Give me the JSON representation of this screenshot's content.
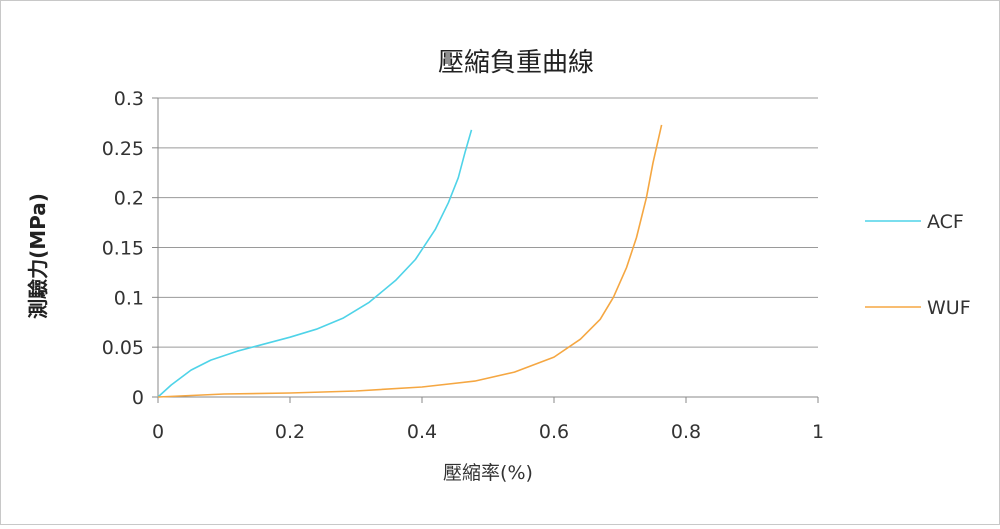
{
  "chart_data": {
    "type": "line",
    "title": "壓縮負重曲線",
    "xlabel": "壓縮率(%)",
    "ylabel": "測驗力(MPa)",
    "xlim": [
      0,
      1
    ],
    "ylim": [
      0,
      0.3
    ],
    "x_ticks": [
      "0",
      "0.2",
      "0.4",
      "0.6",
      "0.8",
      "1"
    ],
    "y_ticks": [
      "0",
      "0.05",
      "0.1",
      "0.15",
      "0.2",
      "0.25",
      "0.3"
    ],
    "grid": "horizontal",
    "legend_position": "right",
    "series": [
      {
        "name": "ACF",
        "color": "#4fd3e8",
        "points": [
          [
            0,
            0
          ],
          [
            0.02,
            0.012
          ],
          [
            0.05,
            0.027
          ],
          [
            0.08,
            0.037
          ],
          [
            0.12,
            0.046
          ],
          [
            0.16,
            0.053
          ],
          [
            0.2,
            0.06
          ],
          [
            0.24,
            0.068
          ],
          [
            0.28,
            0.079
          ],
          [
            0.32,
            0.095
          ],
          [
            0.36,
            0.117
          ],
          [
            0.39,
            0.138
          ],
          [
            0.42,
            0.168
          ],
          [
            0.44,
            0.195
          ],
          [
            0.455,
            0.22
          ],
          [
            0.465,
            0.245
          ],
          [
            0.475,
            0.268
          ]
        ]
      },
      {
        "name": "WUF",
        "color": "#f5a742",
        "points": [
          [
            0,
            0
          ],
          [
            0.1,
            0.003
          ],
          [
            0.2,
            0.004
          ],
          [
            0.3,
            0.006
          ],
          [
            0.4,
            0.01
          ],
          [
            0.48,
            0.016
          ],
          [
            0.54,
            0.025
          ],
          [
            0.6,
            0.04
          ],
          [
            0.64,
            0.058
          ],
          [
            0.67,
            0.078
          ],
          [
            0.69,
            0.1
          ],
          [
            0.71,
            0.13
          ],
          [
            0.725,
            0.16
          ],
          [
            0.74,
            0.2
          ],
          [
            0.75,
            0.235
          ],
          [
            0.763,
            0.273
          ]
        ]
      }
    ]
  }
}
